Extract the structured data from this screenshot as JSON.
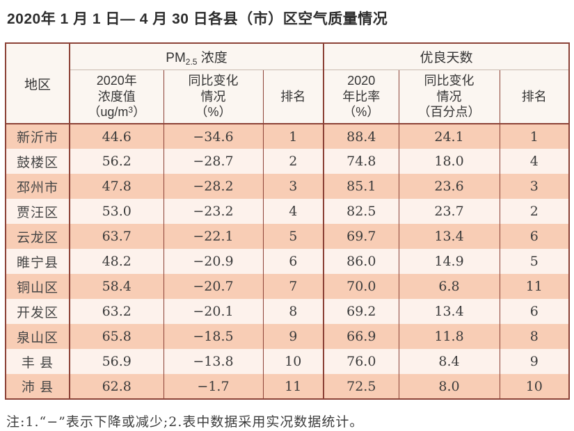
{
  "title": "2020年 1 月 1 日— 4 月 30 日各县（市）区空气质量情况",
  "note": "注:1.“−”表示下降或减少;2.表中数据采用实况数据统计。",
  "colors": {
    "border": "#8b4136",
    "row_odd": "#f8cdb5",
    "row_even": "#fdf2ec",
    "header_bg": "#fbf6f1"
  },
  "table": {
    "header": {
      "region": "地区",
      "pm_prefix": "PM",
      "pm_sub": "2.5",
      "pm_suffix": " 浓度",
      "good_days": "优良天数",
      "conc_l1": "2020年",
      "conc_l2": "浓度值",
      "conc_unit_pre": "（ug/m",
      "conc_unit_sup": "3",
      "conc_unit_post": "）",
      "change_l1": "同比变化",
      "change_l2": "情况",
      "change_l3": "（%）",
      "rank": "排名",
      "ratio_l1": "2020",
      "ratio_l2": "年比率",
      "ratio_l3": "（%）",
      "change2_l1": "同比变化",
      "change2_l2": "情况",
      "change2_l3": "（百分点）",
      "rank2": "排名"
    },
    "rows": [
      {
        "region": "新沂市",
        "conc": "44.6",
        "change": "−34.6",
        "rank": "1",
        "ratio": "88.4",
        "change2": "24.1",
        "rank2": "1"
      },
      {
        "region": "鼓楼区",
        "conc": "56.2",
        "change": "−28.7",
        "rank": "2",
        "ratio": "74.8",
        "change2": "18.0",
        "rank2": "4"
      },
      {
        "region": "邳州市",
        "conc": "47.8",
        "change": "−28.2",
        "rank": "3",
        "ratio": "85.1",
        "change2": "23.6",
        "rank2": "3"
      },
      {
        "region": "贾汪区",
        "conc": "53.0",
        "change": "−23.2",
        "rank": "4",
        "ratio": "82.5",
        "change2": "23.7",
        "rank2": "2"
      },
      {
        "region": "云龙区",
        "conc": "63.7",
        "change": "−22.1",
        "rank": "5",
        "ratio": "69.7",
        "change2": "13.4",
        "rank2": "6"
      },
      {
        "region": "睢宁县",
        "conc": "48.2",
        "change": "−20.9",
        "rank": "6",
        "ratio": "86.0",
        "change2": "14.9",
        "rank2": "5"
      },
      {
        "region": "铜山区",
        "conc": "58.4",
        "change": "−20.7",
        "rank": "7",
        "ratio": "70.0",
        "change2": "6.8",
        "rank2": "11"
      },
      {
        "region": "开发区",
        "conc": "63.2",
        "change": "−20.1",
        "rank": "8",
        "ratio": "69.2",
        "change2": "13.4",
        "rank2": "6"
      },
      {
        "region": "泉山区",
        "conc": "65.8",
        "change": "−18.5",
        "rank": "9",
        "ratio": "66.9",
        "change2": "11.8",
        "rank2": "8"
      },
      {
        "region": "丰 县",
        "conc": "56.9",
        "change": "−13.8",
        "rank": "10",
        "ratio": "76.0",
        "change2": "8.4",
        "rank2": "9"
      },
      {
        "region": "沛 县",
        "conc": "62.8",
        "change": "−1.7",
        "rank": "11",
        "ratio": "72.5",
        "change2": "8.0",
        "rank2": "10"
      }
    ]
  }
}
